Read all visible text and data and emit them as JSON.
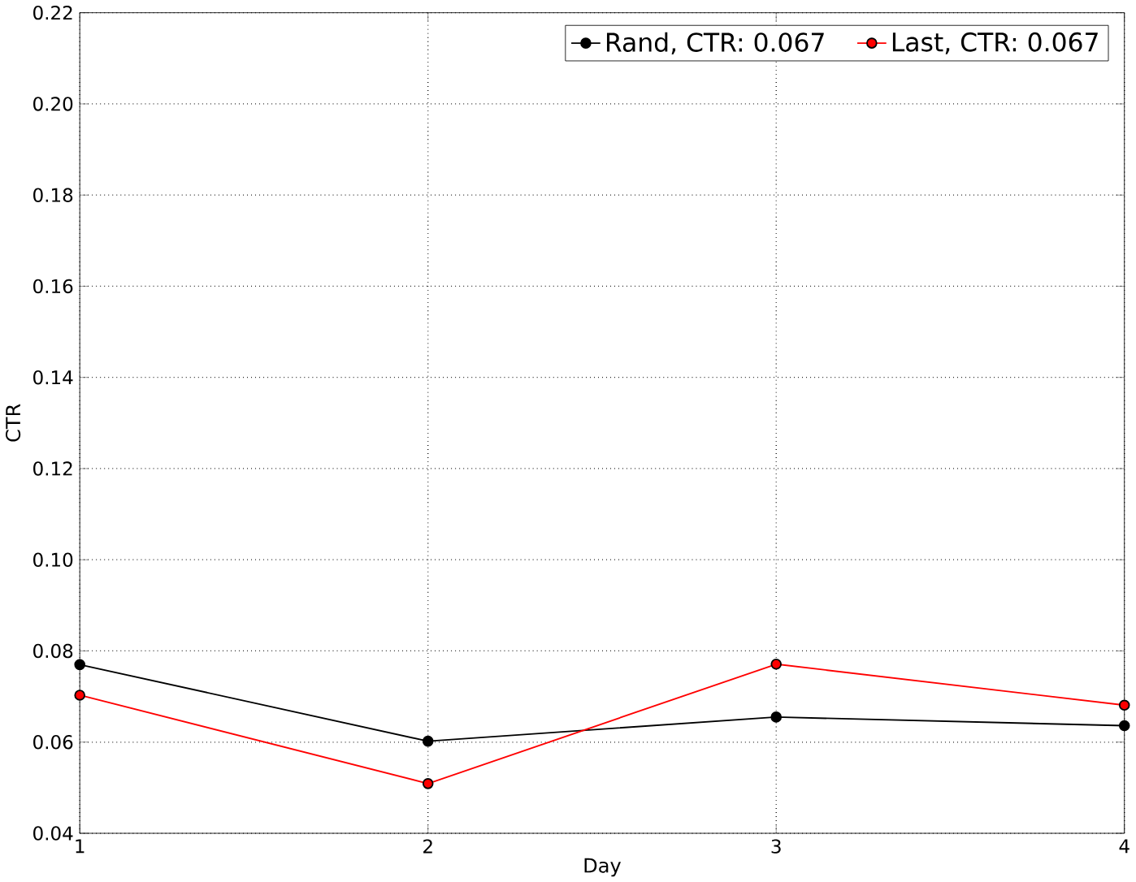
{
  "chart_data": {
    "type": "line",
    "xlabel": "Day",
    "ylabel": "CTR",
    "x": [
      1,
      2,
      3,
      4
    ],
    "series": [
      {
        "name": "Rand, CTR: 0.067",
        "color": "#000000",
        "values": [
          0.077,
          0.0602,
          0.0655,
          0.0636
        ]
      },
      {
        "name": "Last, CTR: 0.067",
        "color": "#ff0000",
        "values": [
          0.0703,
          0.0509,
          0.0771,
          0.0681
        ]
      }
    ],
    "xlim": [
      1,
      4
    ],
    "ylim": [
      0.04,
      0.22
    ],
    "xticks": [
      1,
      2,
      3,
      4
    ],
    "yticks": [
      0.04,
      0.06,
      0.08,
      {
        "value": 0.1,
        "label": "0.10"
      },
      0.12,
      0.14,
      0.16,
      0.18,
      {
        "value": 0.2,
        "label": "0.20"
      },
      0.22
    ],
    "grid": true,
    "legend": "top right",
    "marker": "circle",
    "line_style": "solid"
  }
}
